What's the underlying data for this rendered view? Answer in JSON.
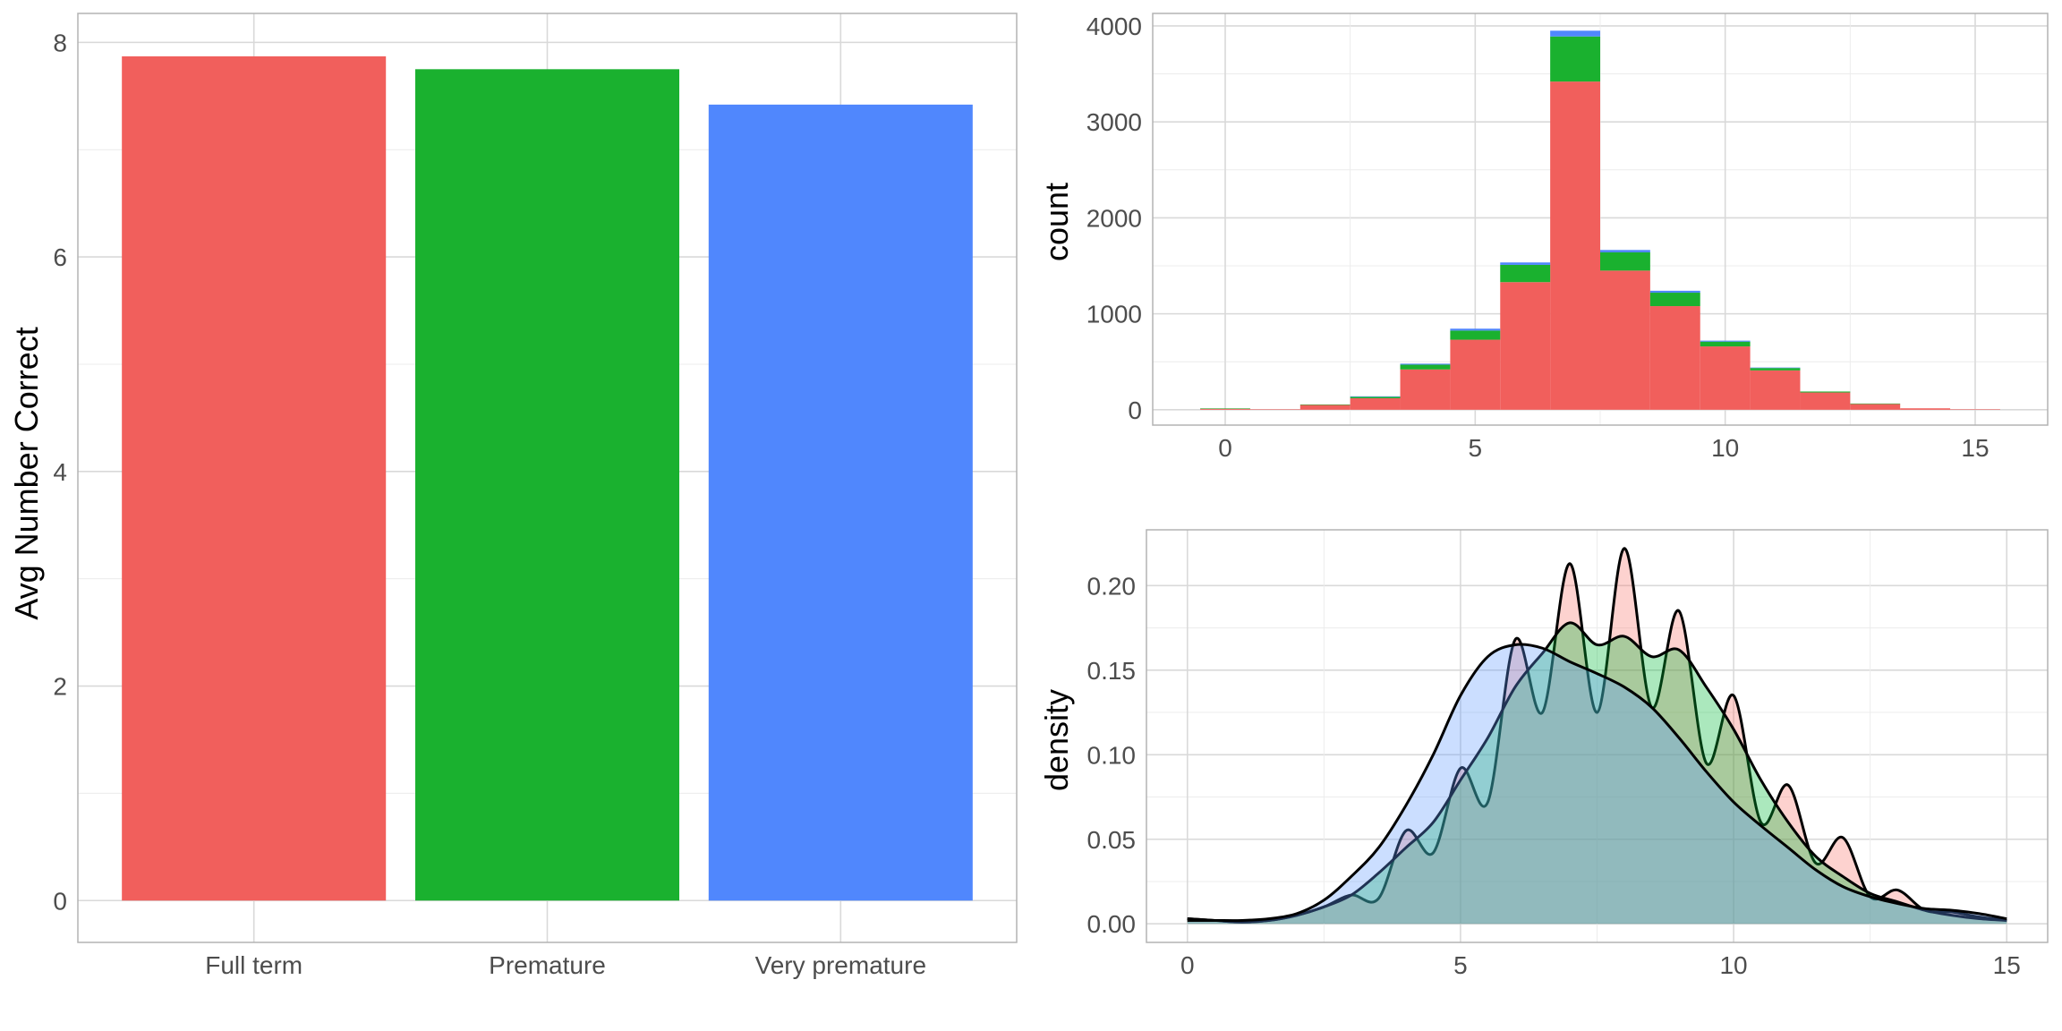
{
  "chart_data": [
    {
      "id": "bar",
      "type": "bar",
      "categories": [
        "Full term",
        "Premature",
        "Very premature"
      ],
      "values": [
        7.87,
        7.75,
        7.42
      ],
      "colors": [
        "#F15F5C",
        "#1AB12F",
        "#5087FD"
      ],
      "title": "",
      "xlabel": "",
      "ylabel": "Avg Number Correct",
      "ylim": [
        -0.39,
        8.27
      ],
      "yticks": [
        0,
        2,
        4,
        6,
        8
      ],
      "ytick_labels": [
        "0",
        "2",
        "4",
        "6",
        "8"
      ],
      "grid": true,
      "legend": "none"
    },
    {
      "id": "histogram",
      "type": "bar",
      "subtype": "stacked-histogram",
      "binwidth": 1,
      "bin_centers": [
        0,
        1,
        2,
        3,
        4,
        5,
        6,
        7,
        8,
        9,
        10,
        11,
        12,
        13,
        14,
        15
      ],
      "series": [
        {
          "color": "#F15F5C",
          "values": [
            10,
            5,
            50,
            120,
            420,
            730,
            1330,
            3420,
            1450,
            1080,
            660,
            410,
            180,
            60,
            15,
            5
          ]
        },
        {
          "color": "#1AB12F",
          "values": [
            5,
            0,
            5,
            15,
            50,
            95,
            180,
            470,
            190,
            140,
            50,
            25,
            10,
            5,
            0,
            0
          ]
        },
        {
          "color": "#5087FD",
          "values": [
            0,
            0,
            0,
            5,
            10,
            20,
            25,
            60,
            25,
            20,
            10,
            5,
            0,
            0,
            0,
            0
          ]
        }
      ],
      "xlabel": "",
      "ylabel": "count",
      "xlim": [
        -1.45,
        16.45
      ],
      "ylim": [
        -160,
        4130
      ],
      "xticks": [
        0,
        5,
        10,
        15
      ],
      "xtick_labels": [
        "0",
        "5",
        "10",
        "15"
      ],
      "yticks": [
        0,
        1000,
        2000,
        3000,
        4000
      ],
      "ytick_labels": [
        "0",
        "1000",
        "2000",
        "3000",
        "4000"
      ],
      "grid": true,
      "legend": "none"
    },
    {
      "id": "density",
      "type": "area",
      "subtype": "density",
      "x": [
        0,
        0.5,
        1,
        1.5,
        2,
        2.5,
        3,
        3.5,
        4,
        4.5,
        5,
        5.5,
        6,
        6.5,
        7,
        7.5,
        8,
        8.5,
        9,
        9.5,
        10,
        10.5,
        11,
        11.5,
        12,
        12.5,
        13,
        13.5,
        14,
        14.5,
        15
      ],
      "series": [
        {
          "color": "#F8766D",
          "values": [
            0.003,
            0.002,
            0.001,
            0.002,
            0.005,
            0.01,
            0.017,
            0.015,
            0.055,
            0.042,
            0.092,
            0.072,
            0.168,
            0.125,
            0.213,
            0.125,
            0.222,
            0.128,
            0.185,
            0.095,
            0.135,
            0.06,
            0.082,
            0.036,
            0.051,
            0.016,
            0.02,
            0.008,
            0.007,
            0.004,
            0.002
          ]
        },
        {
          "color": "#00BA38",
          "values": [
            0.003,
            0.002,
            0.001,
            0.002,
            0.005,
            0.01,
            0.017,
            0.03,
            0.045,
            0.06,
            0.085,
            0.11,
            0.14,
            0.16,
            0.178,
            0.165,
            0.17,
            0.158,
            0.162,
            0.14,
            0.115,
            0.085,
            0.06,
            0.04,
            0.028,
            0.018,
            0.013,
            0.008,
            0.005,
            0.003,
            0.002
          ]
        },
        {
          "color": "#619CFF",
          "values": [
            0.002,
            0.002,
            0.002,
            0.003,
            0.006,
            0.014,
            0.028,
            0.045,
            0.07,
            0.1,
            0.135,
            0.158,
            0.165,
            0.163,
            0.155,
            0.148,
            0.14,
            0.128,
            0.11,
            0.09,
            0.072,
            0.058,
            0.045,
            0.032,
            0.022,
            0.016,
            0.012,
            0.009,
            0.008,
            0.006,
            0.003
          ]
        }
      ],
      "xlabel": "",
      "ylabel": "density",
      "xlim": [
        -0.75,
        15.75
      ],
      "ylim": [
        -0.011,
        0.233
      ],
      "xticks": [
        0,
        5,
        10,
        15
      ],
      "xtick_labels": [
        "0",
        "5",
        "10",
        "15"
      ],
      "yticks": [
        0,
        0.05,
        0.1,
        0.15,
        0.2
      ],
      "ytick_labels": [
        "0.00",
        "0.05",
        "0.10",
        "0.15",
        "0.20"
      ],
      "grid": true,
      "legend": "none"
    }
  ]
}
